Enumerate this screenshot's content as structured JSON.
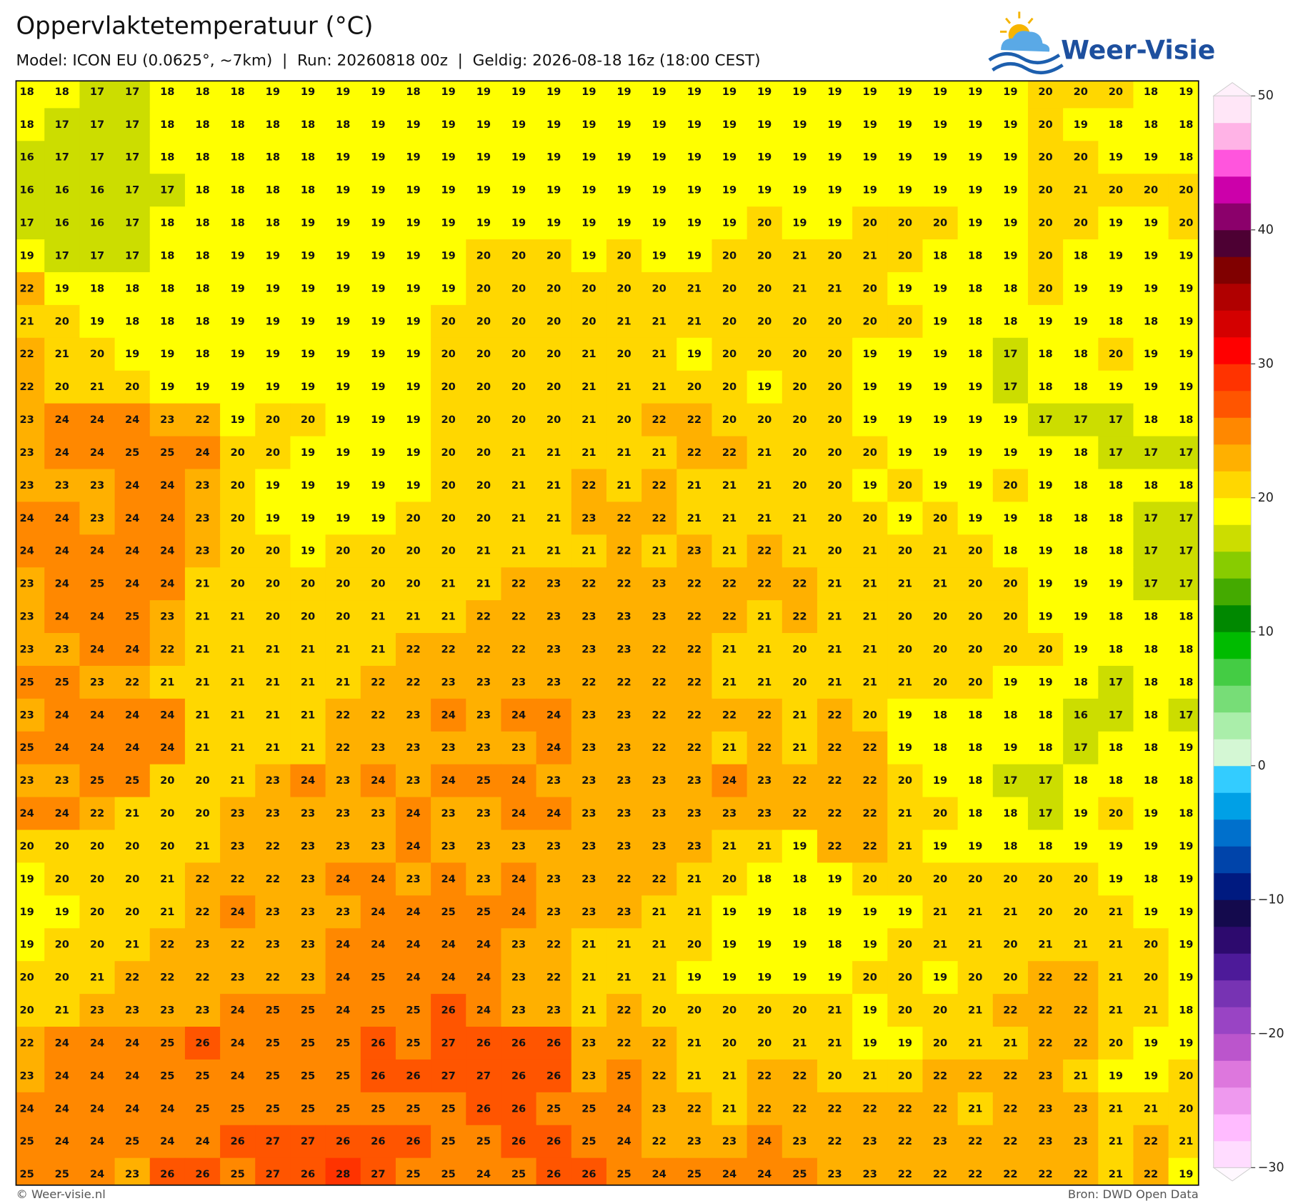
{
  "header": {
    "title": "Oppervlaktetemperatuur (°C)",
    "subtitle": "Model: ICON EU (0.0625°, ~7km)  |  Run: 20260818 00z  |  Geldig: 2026-08-18 16z (18:00 CEST)",
    "logo": "Weer-Visie"
  },
  "footer": {
    "copyright": "© Weer-visie.nl",
    "source": "Bron: DWD Open Data"
  },
  "map": {
    "values": [
      [
        18,
        18,
        17,
        17,
        18,
        18,
        18,
        19,
        19,
        19,
        19,
        18,
        19,
        19,
        19,
        19,
        19,
        19,
        19,
        19,
        19,
        19,
        19,
        19,
        19,
        19,
        19,
        19,
        19,
        20,
        20,
        20,
        18,
        19
      ],
      [
        18,
        17,
        17,
        17,
        18,
        18,
        18,
        18,
        18,
        18,
        19,
        19,
        19,
        19,
        19,
        19,
        19,
        19,
        19,
        19,
        19,
        19,
        19,
        19,
        19,
        19,
        19,
        19,
        19,
        20,
        19,
        18,
        18,
        18
      ],
      [
        16,
        17,
        17,
        17,
        18,
        18,
        18,
        18,
        18,
        19,
        19,
        19,
        19,
        19,
        19,
        19,
        19,
        19,
        19,
        19,
        19,
        19,
        19,
        19,
        19,
        19,
        19,
        19,
        19,
        20,
        20,
        19,
        19,
        18
      ],
      [
        16,
        16,
        16,
        17,
        17,
        18,
        18,
        18,
        18,
        19,
        19,
        19,
        19,
        19,
        19,
        19,
        19,
        19,
        19,
        19,
        19,
        19,
        19,
        19,
        19,
        19,
        19,
        19,
        19,
        20,
        21,
        20,
        20,
        20
      ],
      [
        17,
        16,
        16,
        17,
        18,
        18,
        18,
        18,
        19,
        19,
        19,
        19,
        19,
        19,
        19,
        19,
        19,
        19,
        19,
        19,
        19,
        20,
        19,
        19,
        20,
        20,
        20,
        19,
        19,
        20,
        20,
        19,
        19,
        20
      ],
      [
        19,
        17,
        17,
        17,
        18,
        18,
        19,
        19,
        19,
        19,
        19,
        19,
        19,
        20,
        20,
        20,
        19,
        20,
        19,
        19,
        20,
        20,
        21,
        20,
        21,
        20,
        18,
        18,
        19,
        20,
        18,
        19,
        19,
        19
      ],
      [
        22,
        19,
        18,
        18,
        18,
        18,
        19,
        19,
        19,
        19,
        19,
        19,
        19,
        20,
        20,
        20,
        20,
        20,
        20,
        21,
        20,
        20,
        21,
        21,
        20,
        19,
        19,
        18,
        18,
        20,
        19,
        19,
        19,
        19
      ],
      [
        21,
        20,
        19,
        18,
        18,
        18,
        19,
        19,
        19,
        19,
        19,
        19,
        20,
        20,
        20,
        20,
        20,
        21,
        21,
        21,
        20,
        20,
        20,
        20,
        20,
        20,
        19,
        18,
        18,
        19,
        19,
        18,
        18,
        19
      ],
      [
        22,
        21,
        20,
        19,
        19,
        18,
        19,
        19,
        19,
        19,
        19,
        19,
        20,
        20,
        20,
        20,
        21,
        20,
        21,
        19,
        20,
        20,
        20,
        20,
        19,
        19,
        19,
        18,
        17,
        18,
        18,
        20,
        19,
        19
      ],
      [
        22,
        20,
        21,
        20,
        19,
        19,
        19,
        19,
        19,
        19,
        19,
        19,
        20,
        20,
        20,
        20,
        21,
        21,
        21,
        20,
        20,
        19,
        20,
        20,
        19,
        19,
        19,
        19,
        17,
        18,
        18,
        19,
        19,
        19
      ],
      [
        23,
        24,
        24,
        24,
        23,
        22,
        19,
        20,
        20,
        19,
        19,
        19,
        20,
        20,
        20,
        20,
        21,
        20,
        22,
        22,
        20,
        20,
        20,
        20,
        19,
        19,
        19,
        19,
        19,
        17,
        17,
        17,
        18,
        18
      ],
      [
        23,
        24,
        24,
        25,
        25,
        24,
        20,
        20,
        19,
        19,
        19,
        19,
        20,
        20,
        21,
        21,
        21,
        21,
        21,
        22,
        22,
        21,
        20,
        20,
        20,
        19,
        19,
        19,
        19,
        19,
        18,
        17,
        17,
        17
      ],
      [
        23,
        23,
        23,
        24,
        24,
        23,
        20,
        19,
        19,
        19,
        19,
        19,
        20,
        20,
        21,
        21,
        22,
        21,
        22,
        21,
        21,
        21,
        20,
        20,
        19,
        20,
        19,
        19,
        20,
        19,
        18,
        18,
        18,
        18
      ],
      [
        24,
        24,
        23,
        24,
        24,
        23,
        20,
        19,
        19,
        19,
        19,
        20,
        20,
        20,
        21,
        21,
        23,
        22,
        22,
        21,
        21,
        21,
        21,
        20,
        20,
        19,
        20,
        19,
        19,
        18,
        18,
        18,
        17,
        17
      ],
      [
        24,
        24,
        24,
        24,
        24,
        23,
        20,
        20,
        19,
        20,
        20,
        20,
        20,
        21,
        21,
        21,
        21,
        22,
        21,
        23,
        21,
        22,
        21,
        20,
        21,
        20,
        21,
        20,
        18,
        19,
        18,
        18,
        17,
        17
      ],
      [
        23,
        24,
        25,
        24,
        24,
        21,
        20,
        20,
        20,
        20,
        20,
        20,
        21,
        21,
        22,
        23,
        22,
        22,
        23,
        22,
        22,
        22,
        22,
        21,
        21,
        21,
        21,
        20,
        20,
        19,
        19,
        19,
        17,
        17
      ],
      [
        23,
        24,
        24,
        25,
        23,
        21,
        21,
        20,
        20,
        20,
        21,
        21,
        21,
        22,
        22,
        23,
        23,
        23,
        23,
        22,
        22,
        21,
        22,
        21,
        21,
        20,
        20,
        20,
        20,
        19,
        19,
        18,
        18,
        18
      ],
      [
        23,
        23,
        24,
        24,
        22,
        21,
        21,
        21,
        21,
        21,
        21,
        22,
        22,
        22,
        22,
        23,
        23,
        23,
        22,
        22,
        21,
        21,
        20,
        21,
        21,
        20,
        20,
        20,
        20,
        20,
        19,
        18,
        18,
        18
      ],
      [
        25,
        25,
        23,
        22,
        21,
        21,
        21,
        21,
        21,
        21,
        22,
        22,
        23,
        23,
        23,
        23,
        22,
        22,
        22,
        22,
        21,
        21,
        20,
        21,
        21,
        21,
        20,
        20,
        19,
        19,
        18,
        17,
        18,
        18
      ],
      [
        23,
        24,
        24,
        24,
        24,
        21,
        21,
        21,
        21,
        22,
        22,
        23,
        24,
        23,
        24,
        24,
        23,
        23,
        22,
        22,
        22,
        22,
        21,
        22,
        20,
        19,
        18,
        18,
        18,
        18,
        16,
        17,
        18,
        17
      ],
      [
        25,
        24,
        24,
        24,
        24,
        21,
        21,
        21,
        21,
        22,
        23,
        23,
        23,
        23,
        23,
        24,
        23,
        23,
        22,
        22,
        21,
        22,
        21,
        22,
        22,
        19,
        18,
        18,
        19,
        18,
        17,
        18,
        18,
        19
      ],
      [
        23,
        23,
        25,
        25,
        20,
        20,
        21,
        23,
        24,
        23,
        24,
        23,
        24,
        25,
        24,
        23,
        23,
        23,
        23,
        23,
        24,
        23,
        22,
        22,
        22,
        20,
        19,
        18,
        17,
        17,
        18,
        18,
        18,
        18
      ],
      [
        24,
        24,
        22,
        21,
        20,
        20,
        23,
        23,
        23,
        23,
        23,
        24,
        23,
        23,
        24,
        24,
        23,
        23,
        23,
        23,
        23,
        23,
        22,
        22,
        22,
        21,
        20,
        18,
        18,
        17,
        19,
        20,
        19,
        18
      ],
      [
        20,
        20,
        20,
        20,
        20,
        21,
        23,
        22,
        23,
        23,
        23,
        24,
        23,
        23,
        23,
        23,
        23,
        23,
        23,
        23,
        21,
        21,
        19,
        22,
        22,
        21,
        19,
        19,
        18,
        18,
        19,
        19,
        19,
        19
      ],
      [
        19,
        20,
        20,
        20,
        21,
        22,
        22,
        22,
        23,
        24,
        24,
        23,
        24,
        23,
        24,
        23,
        23,
        22,
        22,
        21,
        20,
        18,
        18,
        19,
        20,
        20,
        20,
        20,
        20,
        20,
        20,
        19,
        18,
        19
      ],
      [
        19,
        19,
        20,
        20,
        21,
        22,
        24,
        23,
        23,
        23,
        24,
        24,
        25,
        25,
        24,
        23,
        23,
        23,
        21,
        21,
        19,
        19,
        18,
        19,
        19,
        19,
        21,
        21,
        21,
        20,
        20,
        21,
        19,
        19
      ],
      [
        19,
        20,
        20,
        21,
        22,
        23,
        22,
        23,
        23,
        24,
        24,
        24,
        24,
        24,
        23,
        22,
        21,
        21,
        21,
        20,
        19,
        19,
        19,
        18,
        19,
        20,
        21,
        21,
        20,
        21,
        21,
        21,
        20,
        19
      ],
      [
        20,
        20,
        21,
        22,
        22,
        22,
        23,
        22,
        23,
        24,
        25,
        24,
        24,
        24,
        23,
        22,
        21,
        21,
        21,
        19,
        19,
        19,
        19,
        19,
        20,
        20,
        19,
        20,
        20,
        22,
        22,
        21,
        20,
        19
      ],
      [
        20,
        21,
        23,
        23,
        23,
        23,
        24,
        25,
        25,
        24,
        25,
        25,
        26,
        24,
        23,
        23,
        21,
        22,
        20,
        20,
        20,
        20,
        20,
        21,
        19,
        20,
        20,
        21,
        22,
        22,
        22,
        21,
        21,
        18
      ],
      [
        22,
        24,
        24,
        24,
        25,
        26,
        24,
        25,
        25,
        25,
        26,
        25,
        27,
        26,
        26,
        26,
        23,
        22,
        22,
        21,
        20,
        20,
        21,
        21,
        19,
        19,
        20,
        21,
        21,
        22,
        22,
        20,
        19,
        19
      ],
      [
        23,
        24,
        24,
        24,
        25,
        25,
        24,
        25,
        25,
        25,
        26,
        26,
        27,
        27,
        26,
        26,
        23,
        25,
        22,
        21,
        21,
        22,
        22,
        20,
        21,
        20,
        22,
        22,
        22,
        23,
        21,
        19,
        19,
        20
      ],
      [
        24,
        24,
        24,
        24,
        24,
        25,
        25,
        25,
        25,
        25,
        25,
        25,
        25,
        26,
        26,
        25,
        25,
        24,
        23,
        22,
        21,
        22,
        22,
        22,
        22,
        22,
        22,
        21,
        22,
        23,
        23,
        21,
        21,
        20
      ],
      [
        25,
        24,
        24,
        25,
        24,
        24,
        26,
        27,
        27,
        26,
        26,
        26,
        25,
        25,
        26,
        26,
        25,
        24,
        22,
        23,
        23,
        24,
        23,
        22,
        23,
        22,
        23,
        22,
        22,
        23,
        23,
        21,
        22,
        21
      ],
      [
        25,
        25,
        24,
        23,
        26,
        26,
        25,
        27,
        26,
        28,
        27,
        25,
        25,
        24,
        25,
        26,
        26,
        25,
        24,
        25,
        24,
        24,
        25,
        23,
        23,
        22,
        22,
        22,
        22,
        22,
        22,
        21,
        22,
        19
      ]
    ]
  },
  "colorbar": {
    "lim": [
      -30,
      50
    ],
    "colors": [
      "#ffdcff",
      "#ffbbff",
      "#ee99ee",
      "#dd77dd",
      "#bb55cc",
      "#9944c4",
      "#7733b3",
      "#4d1a99",
      "#2d0a6e",
      "#140a4d",
      "#001a80",
      "#0044aa",
      "#0070cc",
      "#00a0e6",
      "#33ccff",
      "#d4f7d4",
      "#aaeeaa",
      "#77dd77",
      "#44cc44",
      "#00bb00",
      "#008800",
      "#44aa00",
      "#88cc00",
      "#ccdd00",
      "#ffff00",
      "#ffd700",
      "#ffb000",
      "#ff8800",
      "#ff5500",
      "#ff3300",
      "#ff0000",
      "#d40000",
      "#b00000",
      "#800000",
      "#4d0033",
      "#8b006b",
      "#cc00aa",
      "#ff55dd",
      "#ffb3e6",
      "#ffe6f7"
    ],
    "ticks": [
      {
        "value": -30,
        "label": "−30"
      },
      {
        "value": -20,
        "label": "−20"
      },
      {
        "value": -10,
        "label": "−10"
      },
      0,
      10,
      20,
      30,
      40,
      50
    ]
  }
}
